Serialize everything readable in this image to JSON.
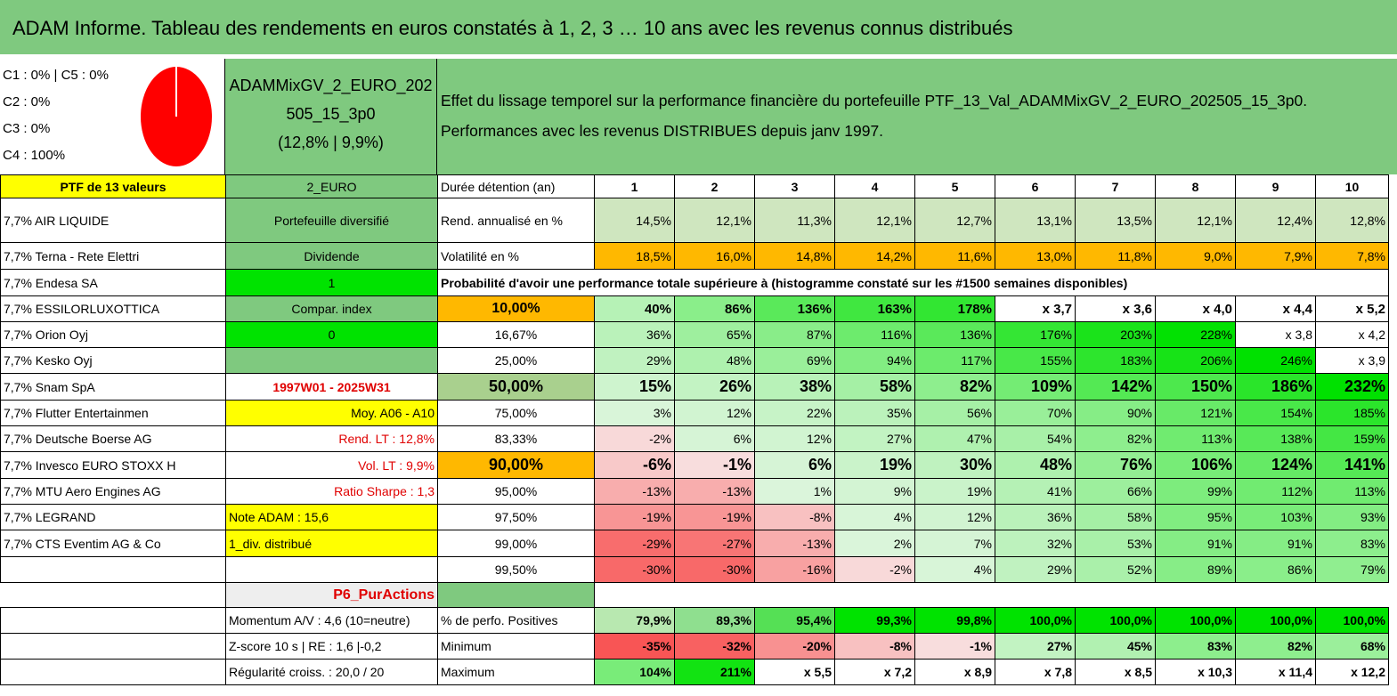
{
  "title": "ADAM Informe. Tableau des rendements en euros constatés à 1, 2, 3 … 10 ans avec les revenus connus distribués",
  "classes": [
    "C1 : 0% | C5 : 0%",
    "C2 : 0%",
    "C3 : 0%",
    "C4 : 100%"
  ],
  "pie_color": "#ff0000",
  "portfolio": {
    "name_line1": "ADAMMixGV_2_EURO_202",
    "name_line2": "505_15_3p0",
    "name_line3": "(12,8% | 9,9%)"
  },
  "description": {
    "line1": "Effet du lissage temporel sur la performance financière du portefeuille PTF_13_Val_ADAMMixGV_2_EURO_202505_15_3p0.",
    "line2": "Performances avec les revenus DISTRIBUES depuis janv 1997."
  },
  "header": {
    "ptf": "PTF de 13 valeurs",
    "code": "2_EURO",
    "duration": "Durée détention (an)",
    "years": [
      "1",
      "2",
      "3",
      "4",
      "5",
      "6",
      "7",
      "8",
      "9",
      "10"
    ]
  },
  "holdings": [
    "7,7% AIR LIQUIDE",
    "7,7% Terna - Rete Elettri",
    "7,7% Endesa SA",
    "7,7% ESSILORLUXOTTICA",
    "7,7% Orion Oyj",
    "7,7% Kesko Oyj",
    "7,7% Snam SpA",
    "7,7% Flutter Entertainmen",
    "7,7% Deutsche Boerse AG",
    "7,7% Invesco EURO STOXX H",
    "7,7% MTU Aero Engines AG",
    "7,7% LEGRAND",
    "7,7% CTS Eventim AG & Co"
  ],
  "side": [
    "Portefeuille diversifié",
    "Dividende",
    "1",
    "Compar. index",
    "0",
    "",
    "1997W01 - 2025W31",
    "Moy. A06 - A10",
    "Rend. LT : 12,8%",
    "Vol. LT : 9,9%",
    "Ratio Sharpe : 1,3",
    "Note ADAM : 15,6",
    "1_div. distribué",
    "",
    "P6_PurActions"
  ],
  "rend": {
    "label": "Rend. annualisé en %",
    "values": [
      "14,5%",
      "12,1%",
      "11,3%",
      "12,1%",
      "12,7%",
      "13,1%",
      "13,5%",
      "12,1%",
      "12,4%",
      "12,8%"
    ]
  },
  "vol": {
    "label": "Volatilité en %",
    "values": [
      "18,5%",
      "16,0%",
      "14,8%",
      "14,2%",
      "11,6%",
      "13,0%",
      "11,8%",
      "9,0%",
      "7,9%",
      "7,8%"
    ]
  },
  "proba_title": "Probabilité d'avoir une performance totale supérieure à (histogramme constaté sur les #1500 semaines disponibles)",
  "quantiles": [
    {
      "q": "10,00%",
      "v": [
        "40%",
        "86%",
        "136%",
        "163%",
        "178%",
        "x 3,7",
        "x 3,6",
        "x 4,0",
        "x 4,4",
        "x 5,2"
      ]
    },
    {
      "q": "16,67%",
      "v": [
        "36%",
        "65%",
        "87%",
        "116%",
        "136%",
        "176%",
        "203%",
        "228%",
        "x 3,8",
        "x 4,2"
      ]
    },
    {
      "q": "25,00%",
      "v": [
        "29%",
        "48%",
        "69%",
        "94%",
        "117%",
        "155%",
        "183%",
        "206%",
        "246%",
        "x 3,9"
      ]
    },
    {
      "q": "50,00%",
      "v": [
        "15%",
        "26%",
        "38%",
        "58%",
        "82%",
        "109%",
        "142%",
        "150%",
        "186%",
        "232%"
      ]
    },
    {
      "q": "75,00%",
      "v": [
        "3%",
        "12%",
        "22%",
        "35%",
        "56%",
        "70%",
        "90%",
        "121%",
        "154%",
        "185%"
      ]
    },
    {
      "q": "83,33%",
      "v": [
        "-2%",
        "6%",
        "12%",
        "27%",
        "47%",
        "54%",
        "82%",
        "113%",
        "138%",
        "159%"
      ]
    },
    {
      "q": "90,00%",
      "v": [
        "-6%",
        "-1%",
        "6%",
        "19%",
        "30%",
        "48%",
        "76%",
        "106%",
        "124%",
        "141%"
      ]
    },
    {
      "q": "95,00%",
      "v": [
        "-13%",
        "-13%",
        "1%",
        "9%",
        "19%",
        "41%",
        "66%",
        "99%",
        "112%",
        "113%"
      ]
    },
    {
      "q": "97,50%",
      "v": [
        "-19%",
        "-19%",
        "-8%",
        "4%",
        "12%",
        "36%",
        "58%",
        "95%",
        "103%",
        "93%"
      ]
    },
    {
      "q": "99,00%",
      "v": [
        "-29%",
        "-27%",
        "-13%",
        "2%",
        "7%",
        "32%",
        "53%",
        "91%",
        "91%",
        "83%"
      ]
    },
    {
      "q": "99,50%",
      "v": [
        "-30%",
        "-30%",
        "-16%",
        "-2%",
        "4%",
        "29%",
        "52%",
        "89%",
        "86%",
        "79%"
      ]
    }
  ],
  "bottom": [
    {
      "left": "Momentum A/V : 4,6 (10=neutre)",
      "label": "% de perfo. Positives",
      "v": [
        "79,9%",
        "89,3%",
        "95,4%",
        "99,3%",
        "99,8%",
        "100,0%",
        "100,0%",
        "100,0%",
        "100,0%",
        "100,0%"
      ]
    },
    {
      "left": "Z-score 10 s | RE : 1,6 |-0,2",
      "label": "Minimum",
      "v": [
        "-35%",
        "-32%",
        "-20%",
        "-8%",
        "-1%",
        "27%",
        "45%",
        "83%",
        "82%",
        "68%"
      ]
    },
    {
      "left": "Régularité croiss. : 20,0 / 20",
      "label": "Maximum",
      "v": [
        "104%",
        "211%",
        "x 5,5",
        "x 7,2",
        "x 8,9",
        "x 7,8",
        "x 8,5",
        "x 10,3",
        "x 11,4",
        "x 12,2"
      ]
    }
  ],
  "colors": {
    "green": "#7fc97f",
    "bright_green": "#00e300",
    "yellow": "#ffff00",
    "orange": "#ffb800",
    "red_text": "#e00000"
  }
}
